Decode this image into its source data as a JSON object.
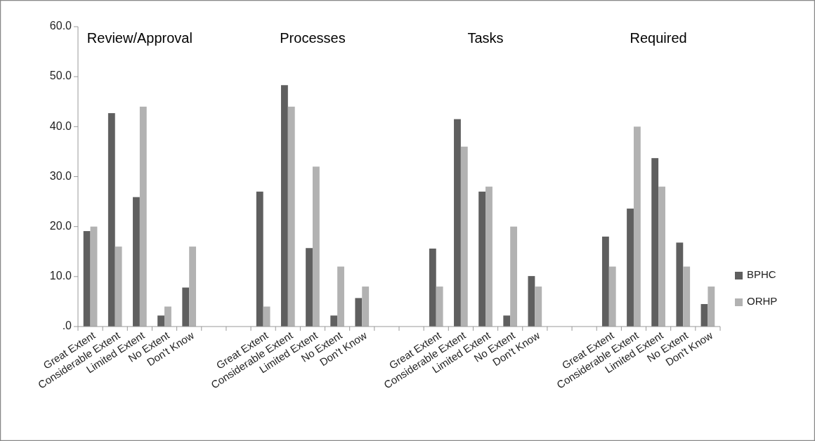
{
  "chart_data": {
    "type": "bar",
    "categories": [
      "Great Extent",
      "Considerable Extent",
      "Limited Extent",
      "No Extent",
      "Don't Know",
      null,
      null,
      "Great Extent",
      "Considerable Extent",
      "Limited Extent",
      "No Extent",
      "Don't Know",
      null,
      null,
      "Great Extent",
      "Considerable Extent",
      "Limited Extent",
      "No Extent",
      "Don't Know",
      null,
      null,
      "Great Extent",
      "Considerable Extent",
      "Limited Extent",
      "No Extent",
      "Don't Know"
    ],
    "series": [
      {
        "name": "BPHC",
        "color": "#5f5f5f",
        "values": [
          19.1,
          42.7,
          25.9,
          2.2,
          7.8,
          null,
          null,
          27.0,
          48.3,
          15.7,
          2.2,
          5.7,
          null,
          null,
          15.6,
          41.5,
          27.0,
          2.2,
          10.1,
          null,
          null,
          18.0,
          23.6,
          33.7,
          16.8,
          4.5
        ]
      },
      {
        "name": "ORHP",
        "color": "#b2b2b2",
        "values": [
          20.0,
          16.0,
          44.0,
          4.0,
          16.0,
          null,
          null,
          4.0,
          44.0,
          32.0,
          12.0,
          8.0,
          null,
          null,
          8.0,
          36.0,
          28.0,
          20.0,
          8.0,
          null,
          null,
          12.0,
          40.0,
          28.0,
          12.0,
          8.0
        ]
      }
    ],
    "annotations": [
      "Review/Approval",
      "Processes",
      "Tasks",
      "Required"
    ],
    "ylim": [
      0,
      60
    ],
    "yticks": [
      {
        "value": 0,
        "label": ".0"
      },
      {
        "value": 10,
        "label": "10.0"
      },
      {
        "value": 20,
        "label": "20.0"
      },
      {
        "value": 30,
        "label": "30.0"
      },
      {
        "value": 40,
        "label": "40.0"
      },
      {
        "value": 50,
        "label": "50.0"
      },
      {
        "value": 60,
        "label": "60.0"
      }
    ],
    "grid": false,
    "legend": "right"
  }
}
